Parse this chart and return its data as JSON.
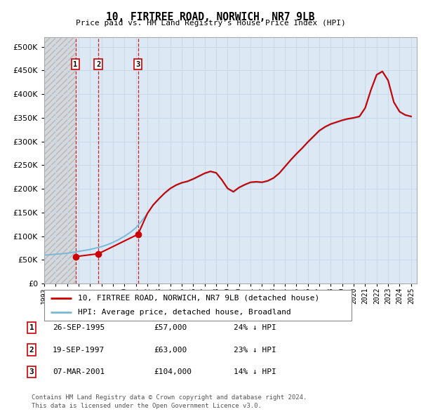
{
  "title": "10, FIRTREE ROAD, NORWICH, NR7 9LB",
  "subtitle": "Price paid vs. HM Land Registry's House Price Index (HPI)",
  "legend_line1": "10, FIRTREE ROAD, NORWICH, NR7 9LB (detached house)",
  "legend_line2": "HPI: Average price, detached house, Broadland",
  "footer1": "Contains HM Land Registry data © Crown copyright and database right 2024.",
  "footer2": "This data is licensed under the Open Government Licence v3.0.",
  "transactions": [
    {
      "num": 1,
      "date": "26-SEP-1995",
      "price": 57000,
      "pct": "24% ↓ HPI",
      "x_year": 1995.73
    },
    {
      "num": 2,
      "date": "19-SEP-1997",
      "price": 63000,
      "pct": "23% ↓ HPI",
      "x_year": 1997.72
    },
    {
      "num": 3,
      "date": "07-MAR-2001",
      "price": 104000,
      "pct": "14% ↓ HPI",
      "x_year": 2001.18
    }
  ],
  "hpi_color": "#7ab8d9",
  "price_color": "#cc0000",
  "grid_color": "#c8d8e8",
  "bg_color": "#dce9f5",
  "hatch_color": "#b0b8c8",
  "xlim": [
    1993.0,
    2025.5
  ],
  "ylim": [
    0,
    520000
  ],
  "yticks": [
    0,
    50000,
    100000,
    150000,
    200000,
    250000,
    300000,
    350000,
    400000,
    450000,
    500000
  ],
  "xticks": [
    1993,
    1994,
    1995,
    1996,
    1997,
    1998,
    1999,
    2000,
    2001,
    2002,
    2003,
    2004,
    2005,
    2006,
    2007,
    2008,
    2009,
    2010,
    2011,
    2012,
    2013,
    2014,
    2015,
    2016,
    2017,
    2018,
    2019,
    2020,
    2021,
    2022,
    2023,
    2024,
    2025
  ],
  "hpi_years": [
    1993.0,
    1993.5,
    1994.0,
    1994.5,
    1995.0,
    1995.5,
    1996.0,
    1996.5,
    1997.0,
    1997.5,
    1998.0,
    1998.5,
    1999.0,
    1999.5,
    2000.0,
    2000.5,
    2001.0,
    2001.5,
    2002.0,
    2002.5,
    2003.0,
    2003.5,
    2004.0,
    2004.5,
    2005.0,
    2005.5,
    2006.0,
    2006.5,
    2007.0,
    2007.5,
    2008.0,
    2008.5,
    2009.0,
    2009.5,
    2010.0,
    2010.5,
    2011.0,
    2011.5,
    2012.0,
    2012.5,
    2013.0,
    2013.5,
    2014.0,
    2014.5,
    2015.0,
    2015.5,
    2016.0,
    2016.5,
    2017.0,
    2017.5,
    2018.0,
    2018.5,
    2019.0,
    2019.5,
    2020.0,
    2020.5,
    2021.0,
    2021.5,
    2022.0,
    2022.5,
    2023.0,
    2023.5,
    2024.0,
    2024.5,
    2025.0
  ],
  "hpi_values": [
    60000,
    61000,
    62000,
    63000,
    64000,
    66000,
    68000,
    70000,
    72000,
    75000,
    78000,
    82000,
    87000,
    93000,
    100000,
    108000,
    118000,
    132000,
    148000,
    165000,
    178000,
    190000,
    200000,
    207000,
    212000,
    215000,
    220000,
    226000,
    232000,
    236000,
    233000,
    218000,
    200000,
    193000,
    202000,
    208000,
    213000,
    214000,
    213000,
    216000,
    222000,
    232000,
    246000,
    260000,
    273000,
    285000,
    298000,
    310000,
    322000,
    330000,
    336000,
    340000,
    344000,
    347000,
    349000,
    352000,
    370000,
    408000,
    440000,
    447000,
    428000,
    382000,
    362000,
    355000,
    352000
  ],
  "price_years": [
    1995.73,
    1997.72,
    2001.18,
    2002.0,
    2002.5,
    2003.0,
    2003.5,
    2004.0,
    2004.5,
    2005.0,
    2005.5,
    2006.0,
    2006.5,
    2007.0,
    2007.5,
    2008.0,
    2008.5,
    2009.0,
    2009.5,
    2010.0,
    2010.5,
    2011.0,
    2011.5,
    2012.0,
    2012.5,
    2013.0,
    2013.5,
    2014.0,
    2014.5,
    2015.0,
    2015.5,
    2016.0,
    2016.5,
    2017.0,
    2017.5,
    2018.0,
    2018.5,
    2019.0,
    2019.5,
    2020.0,
    2020.5,
    2021.0,
    2021.5,
    2022.0,
    2022.5,
    2023.0,
    2023.5,
    2024.0,
    2024.5,
    2025.0
  ],
  "price_values": [
    57000,
    63000,
    104000,
    148000,
    166000,
    179000,
    191000,
    201000,
    208000,
    213000,
    216000,
    221000,
    227000,
    233000,
    237000,
    234000,
    219000,
    201000,
    194000,
    203000,
    209000,
    214000,
    215000,
    214000,
    217000,
    223000,
    233000,
    247000,
    261000,
    274000,
    286000,
    299000,
    311000,
    323000,
    331000,
    337000,
    341000,
    345000,
    348000,
    350000,
    353000,
    371000,
    409000,
    441000,
    448000,
    429000,
    383000,
    363000,
    356000,
    353000
  ]
}
